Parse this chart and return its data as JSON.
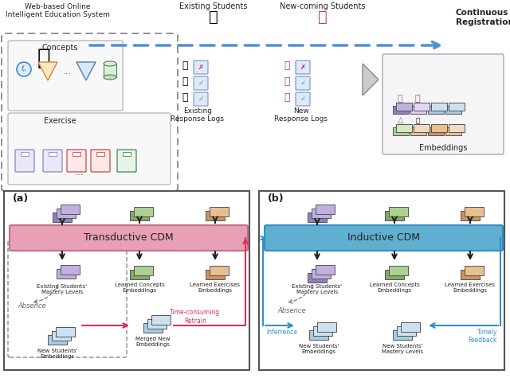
{
  "bg": "#ffffff",
  "colors": {
    "purple": "#9080c0",
    "purple_light": "#c0b0e0",
    "purple_lighter": "#d8d0f0",
    "green": "#80aa60",
    "green_light": "#b0d090",
    "green_lighter": "#d5e8c5",
    "orange": "#d09060",
    "orange_light": "#e8c090",
    "orange_lighter": "#f0dbc0",
    "blue": "#70aad0",
    "blue_light": "#a8cce0",
    "blue_lighter": "#cce0f0",
    "pink_cdm": "#e8a0b4",
    "pink_cdm_border": "#c07090",
    "teal_cdm": "#60afd0",
    "teal_cdm_border": "#3090c0",
    "red_arrow": "#e03050",
    "blue_arrow": "#3090d0",
    "dark": "#222222",
    "gray_dash": "#888888",
    "gray_border": "#aaaaaa"
  },
  "text": {
    "web": "Web-based Online\nIntelligent Education System",
    "existing_students": "Existing Students",
    "newcoming_students": "New-coming Students",
    "continuous": "Continuous\nRegistration",
    "concepts": "Concepts",
    "exercise": "Exercise",
    "exist_logs": "Existing\nResponse Logs",
    "new_logs": "New\nResponse Logs",
    "embeddings": "Embeddings",
    "a_label": "(a)",
    "b_label": "(b)",
    "trans_cdm": "Transductive CDM",
    "induct_cdm": "Inductive CDM",
    "exist_mastery": "Existing Students'\nMastery Levels",
    "learn_concepts": "Learned Concepts\nEmbeddings",
    "learn_exercises": "Learned Exercises\nEmbeddings",
    "absence": "Absence",
    "new_embed": "New Students'\nEmbeddings",
    "merged": "Merged New\nEmbeddings",
    "retrain": "Time-consuming\nRetrain",
    "new_mastery_b": "New Students'\nMastery Levels",
    "inferrence": "Inferrence",
    "timely": "Timely\nFeedback"
  }
}
